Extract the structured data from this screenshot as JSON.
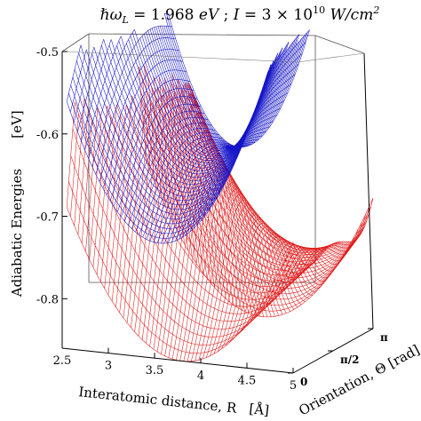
{
  "chart_data": {
    "type": "surface3d",
    "title_parts": {
      "lhs": "ℏω",
      "lhs_sub": "L",
      "eq1": " = 1.968 ",
      "unit1": "eV",
      "sep": " ; ",
      "I": "I",
      "eq2": " = 3 × 10",
      "exp": "10",
      "unit2": " W/cm",
      "unit2_exp": "2"
    },
    "axes": {
      "x": {
        "label": "Interatomic distance, R",
        "unit": "[Å]",
        "range": [
          2.5,
          5.0
        ],
        "ticks": [
          "2.5",
          "3",
          "3.5",
          "4",
          "4.5",
          "5"
        ]
      },
      "y": {
        "label": "Orientation, Θ [rad]",
        "range_rad": [
          0,
          3.1416
        ],
        "ticks": [
          "0",
          "π/2",
          "π"
        ]
      },
      "z": {
        "label": "Adiabatic Energies",
        "unit": "[eV]",
        "range": [
          -0.86,
          -0.5
        ],
        "ticks": [
          "-0.5",
          "-0.6",
          "-0.7",
          "-0.8"
        ]
      }
    },
    "series": [
      {
        "color": "#1414c8",
        "min_energy": -0.72,
        "min_at_R": 3.55
      },
      {
        "color": "#e01818",
        "min_energy": -0.86,
        "min_at_R": 3.8
      }
    ],
    "grid": false,
    "box": true
  }
}
